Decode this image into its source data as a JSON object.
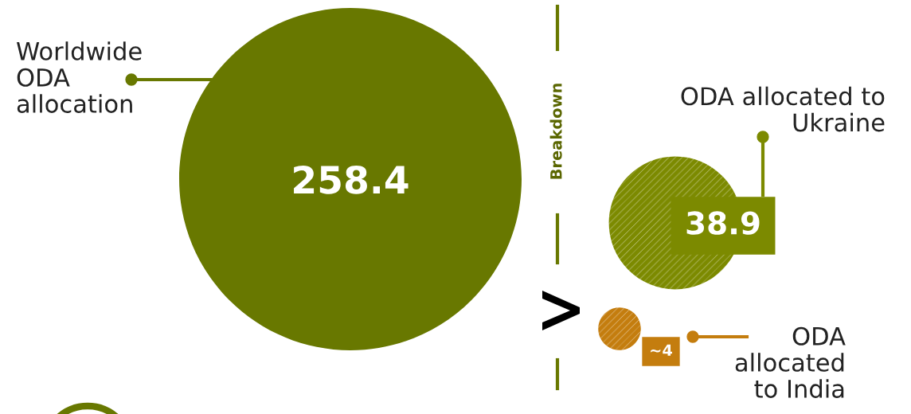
{
  "chart_data": {
    "type": "other",
    "categories": [
      "Worldwide ODA allocation",
      "ODA allocated to Ukraine",
      "ODA allocated to India"
    ],
    "values": [
      258.4,
      38.9,
      4
    ],
    "value_labels": [
      "258.4",
      "38.9",
      "~4"
    ],
    "colors": [
      "#687800",
      "#7c8a00",
      "#c47d0e"
    ],
    "annotations": [
      "Breakdown"
    ]
  }
}
